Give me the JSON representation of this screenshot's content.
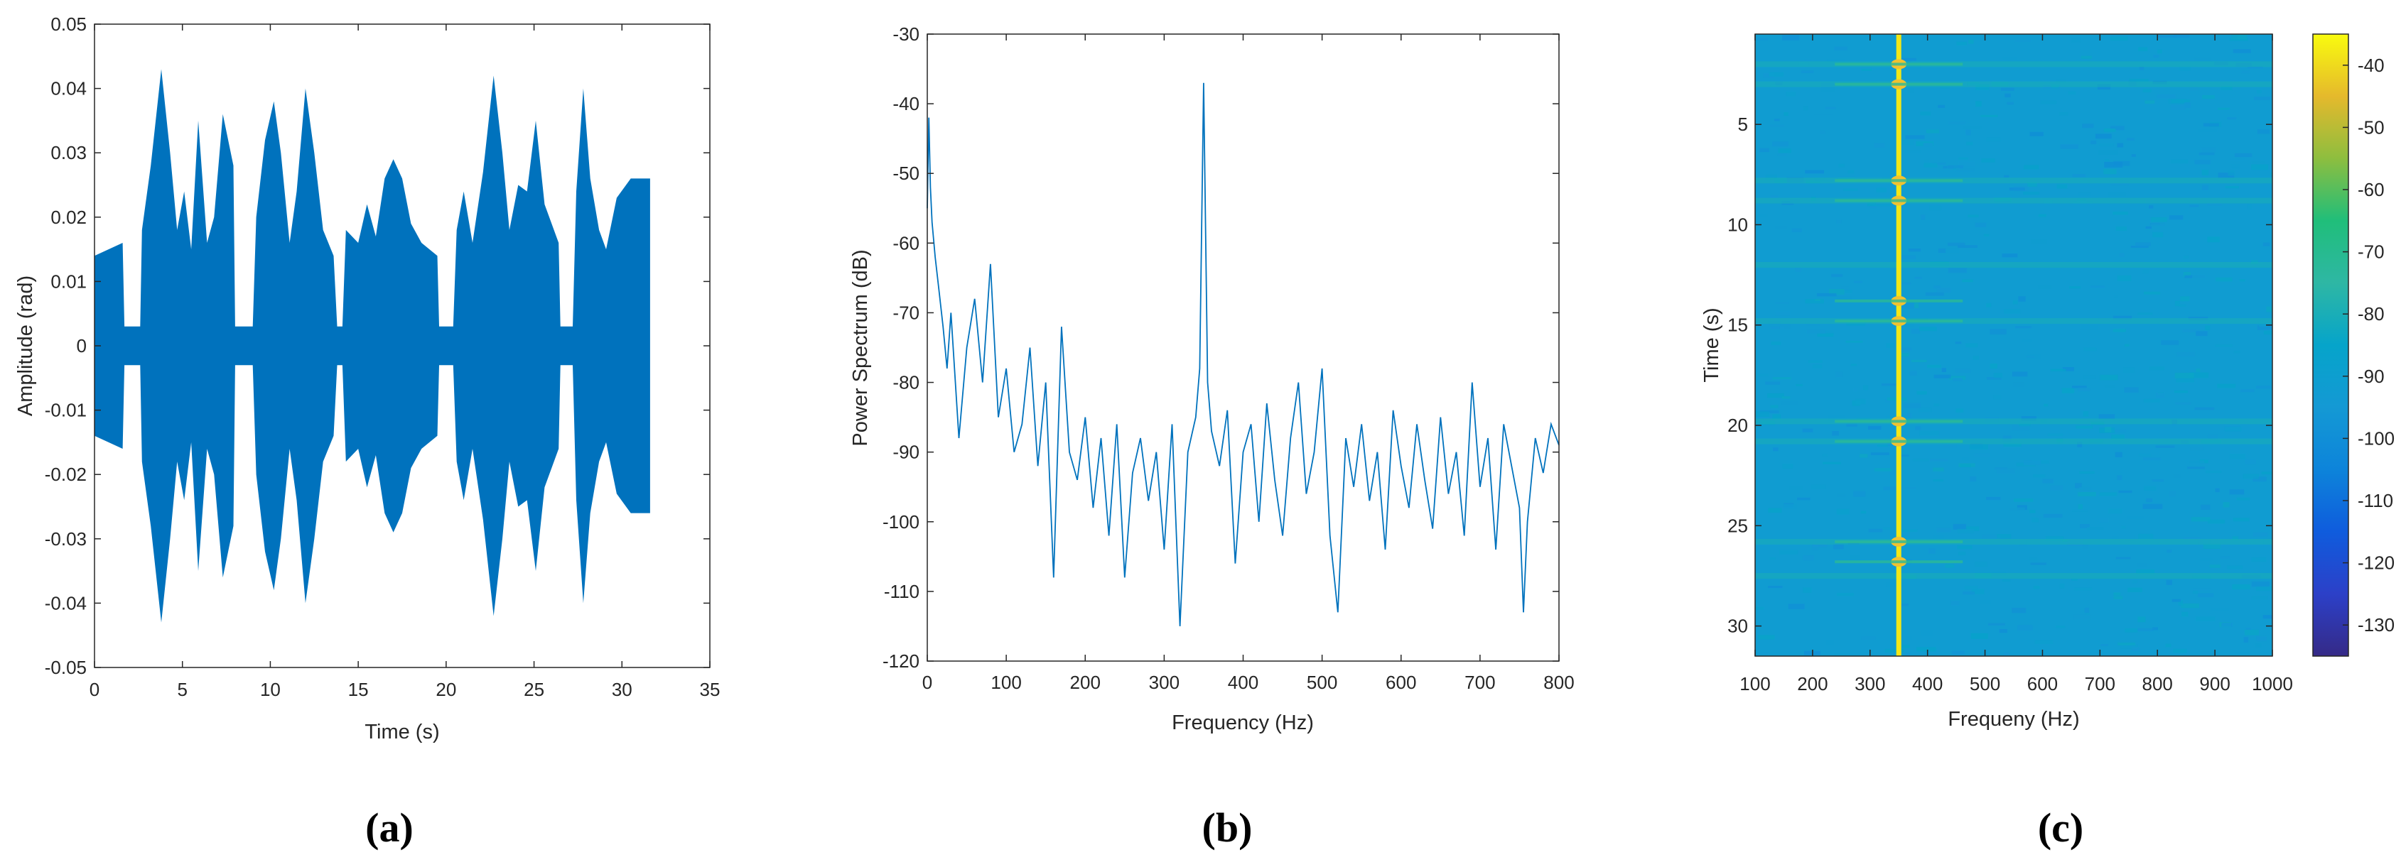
{
  "colors": {
    "signal": "#0072BD",
    "axis": "#262626",
    "heat_background": "#22B2C8",
    "heat_line": "#F5F500"
  },
  "chart_data": [
    {
      "id": "a",
      "panel_label": "(a)",
      "type": "line",
      "title": "",
      "xlabel": "Time (s)",
      "ylabel": "Amplitude (rad)",
      "xlim": [
        0,
        35
      ],
      "ylim": [
        -0.05,
        0.05
      ],
      "xticks": [
        0,
        5,
        10,
        15,
        20,
        25,
        30,
        35
      ],
      "xtick_labels": [
        "0",
        "5",
        "10",
        "15",
        "20",
        "25",
        "30",
        "35"
      ],
      "yticks": [
        -0.05,
        -0.04,
        -0.03,
        -0.02,
        -0.01,
        0,
        0.01,
        0.02,
        0.03,
        0.04,
        0.05
      ],
      "ytick_labels": [
        "-0.05",
        "-0.04",
        "-0.03",
        "-0.02",
        "-0.01",
        "0",
        "0.01",
        "0.02",
        "0.03",
        "0.04",
        "0.05"
      ],
      "series": [
        {
          "name": "signal envelope",
          "x": [
            0,
            1.6,
            1.7,
            2.6,
            2.7,
            3.2,
            3.8,
            4.3,
            4.7,
            5.1,
            5.5,
            5.9,
            6.4,
            6.8,
            7.3,
            7.9,
            8.0,
            9.0,
            9.2,
            9.7,
            10.2,
            10.6,
            11.1,
            11.5,
            12.0,
            12.5,
            13.0,
            13.6,
            13.8,
            14.1,
            14.3,
            15.0,
            15.5,
            16.0,
            16.5,
            17.0,
            17.5,
            18.0,
            18.6,
            19.5,
            19.6,
            20.4,
            20.6,
            21.0,
            21.5,
            22.1,
            22.7,
            23.2,
            23.6,
            24.1,
            24.6,
            25.1,
            25.6,
            26.4,
            26.5,
            27.2,
            27.4,
            27.8,
            28.2,
            28.7,
            29.1,
            29.7,
            30.5,
            31.5,
            31.6
          ],
          "upper": [
            0.014,
            0.016,
            0.003,
            0.003,
            0.018,
            0.028,
            0.043,
            0.03,
            0.018,
            0.024,
            0.015,
            0.035,
            0.016,
            0.02,
            0.036,
            0.028,
            0.003,
            0.003,
            0.02,
            0.032,
            0.038,
            0.03,
            0.016,
            0.024,
            0.04,
            0.03,
            0.018,
            0.014,
            0.003,
            0.003,
            0.018,
            0.016,
            0.022,
            0.017,
            0.026,
            0.029,
            0.026,
            0.019,
            0.016,
            0.014,
            0.003,
            0.003,
            0.018,
            0.024,
            0.016,
            0.027,
            0.042,
            0.03,
            0.018,
            0.025,
            0.024,
            0.035,
            0.022,
            0.016,
            0.003,
            0.003,
            0.024,
            0.04,
            0.026,
            0.018,
            0.015,
            0.023,
            0.026,
            0.026,
            0.026
          ],
          "lower": [
            -0.014,
            -0.016,
            -0.003,
            -0.003,
            -0.018,
            -0.028,
            -0.043,
            -0.03,
            -0.018,
            -0.024,
            -0.015,
            -0.035,
            -0.016,
            -0.02,
            -0.036,
            -0.028,
            -0.003,
            -0.003,
            -0.02,
            -0.032,
            -0.038,
            -0.03,
            -0.016,
            -0.024,
            -0.04,
            -0.03,
            -0.018,
            -0.014,
            -0.003,
            -0.003,
            -0.018,
            -0.016,
            -0.022,
            -0.017,
            -0.026,
            -0.029,
            -0.026,
            -0.019,
            -0.016,
            -0.014,
            -0.003,
            -0.003,
            -0.018,
            -0.024,
            -0.016,
            -0.027,
            -0.042,
            -0.03,
            -0.018,
            -0.025,
            -0.024,
            -0.035,
            -0.022,
            -0.016,
            -0.003,
            -0.003,
            -0.024,
            -0.04,
            -0.026,
            -0.018,
            -0.015,
            -0.023,
            -0.026,
            -0.026,
            -0.026
          ]
        }
      ]
    },
    {
      "id": "b",
      "panel_label": "(b)",
      "type": "line",
      "title": "",
      "xlabel": "Frequency (Hz)",
      "ylabel": "Power Spectrum (dB)",
      "xlim": [
        0,
        800
      ],
      "ylim": [
        -120,
        -30
      ],
      "xticks": [
        0,
        100,
        200,
        300,
        400,
        500,
        600,
        700,
        800
      ],
      "xtick_labels": [
        "0",
        "100",
        "200",
        "300",
        "400",
        "500",
        "600",
        "700",
        "800"
      ],
      "yticks": [
        -120,
        -110,
        -100,
        -90,
        -80,
        -70,
        -60,
        -50,
        -40,
        -30
      ],
      "ytick_labels": [
        "-120",
        "-110",
        "-100",
        "-90",
        "-80",
        "-70",
        "-60",
        "-50",
        "-40",
        "-30"
      ],
      "series": [
        {
          "name": "power spectrum",
          "x": [
            0,
            2,
            4,
            6,
            10,
            15,
            20,
            25,
            30,
            40,
            50,
            60,
            70,
            80,
            90,
            100,
            110,
            120,
            130,
            140,
            150,
            160,
            170,
            180,
            190,
            200,
            210,
            220,
            230,
            240,
            250,
            260,
            270,
            280,
            290,
            300,
            310,
            320,
            330,
            340,
            345,
            350,
            355,
            360,
            370,
            380,
            390,
            400,
            410,
            420,
            430,
            440,
            450,
            460,
            470,
            480,
            490,
            500,
            510,
            520,
            530,
            540,
            550,
            560,
            570,
            580,
            590,
            600,
            610,
            620,
            630,
            640,
            650,
            660,
            670,
            680,
            690,
            700,
            710,
            720,
            730,
            740,
            750,
            755,
            760,
            770,
            780,
            790,
            800
          ],
          "values": [
            -55,
            -42,
            -52,
            -57,
            -62,
            -67,
            -72,
            -78,
            -70,
            -88,
            -75,
            -68,
            -80,
            -63,
            -85,
            -78,
            -90,
            -86,
            -75,
            -92,
            -80,
            -108,
            -72,
            -90,
            -94,
            -85,
            -98,
            -88,
            -102,
            -86,
            -108,
            -93,
            -88,
            -97,
            -90,
            -104,
            -86,
            -115,
            -90,
            -85,
            -78,
            -37,
            -80,
            -87,
            -92,
            -84,
            -106,
            -90,
            -86,
            -100,
            -83,
            -94,
            -102,
            -88,
            -80,
            -96,
            -90,
            -78,
            -102,
            -113,
            -88,
            -95,
            -86,
            -97,
            -90,
            -104,
            -84,
            -92,
            -98,
            -86,
            -94,
            -101,
            -85,
            -96,
            -90,
            -102,
            -80,
            -95,
            -88,
            -104,
            -86,
            -92,
            -98,
            -113,
            -100,
            -88,
            -93,
            -86,
            -89
          ]
        }
      ]
    },
    {
      "id": "c",
      "panel_label": "(c)",
      "type": "heatmap",
      "title": "",
      "xlabel": "Frequeny (Hz)",
      "ylabel": "Time (s)",
      "xlim": [
        100,
        1000
      ],
      "ylim": [
        31.5,
        0.5
      ],
      "xticks": [
        100,
        200,
        300,
        400,
        500,
        600,
        700,
        800,
        900,
        1000
      ],
      "xtick_labels": [
        "100",
        "200",
        "300",
        "400",
        "500",
        "600",
        "700",
        "800",
        "900",
        "1000"
      ],
      "yticks": [
        5,
        10,
        15,
        20,
        25,
        30
      ],
      "ytick_labels": [
        "5",
        "10",
        "15",
        "20",
        "25",
        "30"
      ],
      "colorbar": {
        "range": [
          -135,
          -35
        ],
        "ticks": [
          -40,
          -50,
          -60,
          -70,
          -80,
          -90,
          -100,
          -110,
          -120,
          -130
        ],
        "tick_labels": [
          "-40",
          "-50",
          "-60",
          "-70",
          "-80",
          "-90",
          "-100",
          "-110",
          "-120",
          "-130"
        ]
      },
      "background_level_db": -92,
      "tone": {
        "frequency_hz": 350,
        "level_db": -38
      },
      "tone_peaks_s": [
        2,
        3,
        7.8,
        8.8,
        13.8,
        14.8,
        19.8,
        20.8,
        25.8,
        26.8
      ],
      "bright_rows_s": [
        2,
        3,
        7.8,
        8.8,
        12,
        14.8,
        19.8,
        20.8,
        25.8,
        27.5
      ]
    }
  ]
}
